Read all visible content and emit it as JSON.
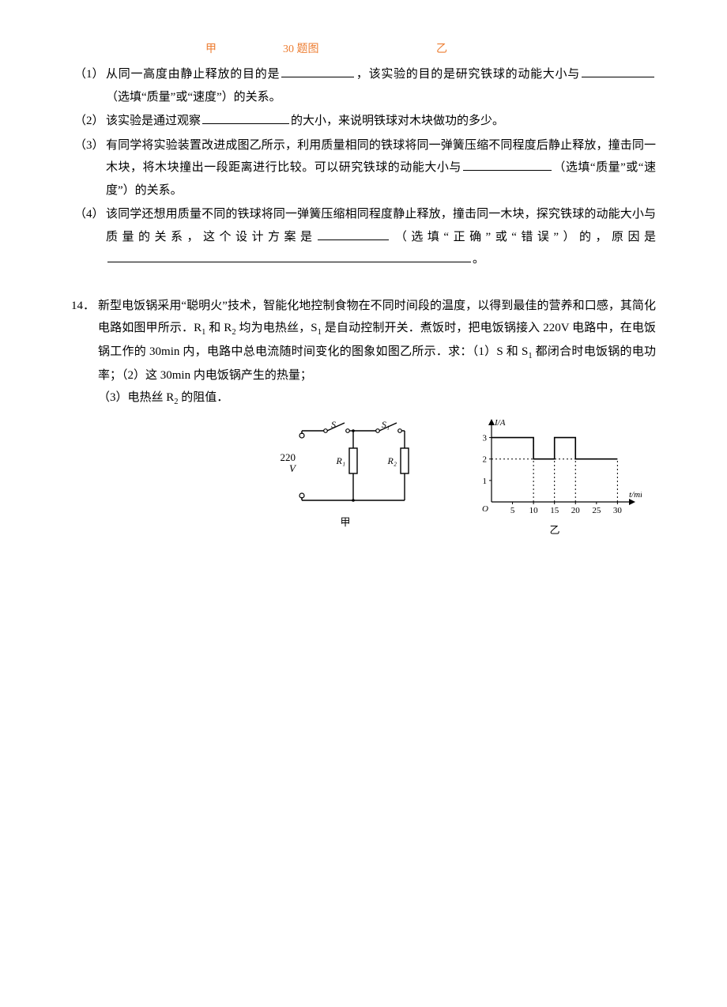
{
  "header": {
    "jia": "甲",
    "title": "30 题图",
    "yi": "乙",
    "color": "#ed7d31"
  },
  "q13": {
    "items": [
      {
        "num": "（1）",
        "pre": "从同一高度由静止释放的目的是",
        "blank1_w": 92,
        "mid": "，该实验的目的是研究铁球的动能大小与",
        "blank2_w": 92,
        "post": "（选填“质量”或“速度”）的关系。"
      },
      {
        "num": "（2）",
        "pre": "该实验是通过观察",
        "blank1_w": 110,
        "post": "的大小，来说明铁球对木块做功的多少。"
      },
      {
        "num": "（3）",
        "lines": [
          "有同学将实验装置改进成图乙所示，利用质量相同的铁球将同一弹簧压缩不同程度后静止释放，撞击同一木块，将木块撞出一段距离进行比较。可以研究铁球的动能大小与"
        ],
        "blank1_w": 112,
        "post": "（选填“质量”或“速度”）的关系。"
      },
      {
        "num": "（4）",
        "pre": "该同学还想用质量不同的铁球将同一弹簧压缩相同程度静止释放，撞击同一木块，探究铁球的动能大小与质量的关系，这个设计方案是",
        "blank1_w": 90,
        "mid": "（选填“正确”或“错误”）的，原因是",
        "blank2_w": 460,
        "post": "。"
      }
    ]
  },
  "q14": {
    "num": "14．",
    "text_pre": "新型电饭锅采用“聪明火”技术，智能化地控制食物在不同时间段的温度，以得到最佳的营养和口感，其简化电路如图甲所示．R",
    "sub1": "1",
    "text_mid1": " 和 R",
    "sub2": "2",
    "text_mid2": " 均为电热丝，S",
    "sub3": "1",
    "text_mid3": " 是自动控制开关．煮饭时，把电饭锅接入 220V 电路中，在电饭锅工作的 30min 内，电路中总电流随时间变化的图象如图乙所示．求：（1）S 和 S",
    "sub4": "1",
    "text_mid4": " 都闭合时电饭锅的电功率；（2）这 30min 内电饭锅产生的热量；",
    "line3": "（3）电热丝 R",
    "sub5": "2",
    "text_end": " 的阻值．",
    "circuit": {
      "label": "甲",
      "voltage": "220",
      "v_unit": "V",
      "s_label": "S",
      "s1_label": "S₁",
      "r1_label": "R₁",
      "r2_label": "R₂",
      "stroke": "#000000",
      "font_size": 12
    },
    "graph": {
      "label": "乙",
      "y_label": "I/A",
      "x_label": "t/min",
      "x_ticks": [
        "5",
        "10",
        "15",
        "20",
        "25",
        "30"
      ],
      "y_ticks": [
        "1",
        "2",
        "3"
      ],
      "x_max": 30,
      "y_max": 3.5,
      "ylim": [
        0,
        3.5
      ],
      "xlim": [
        0,
        32
      ],
      "origin": "O",
      "data_points": [
        {
          "t": 0,
          "I": 3
        },
        {
          "t": 10,
          "I": 3
        },
        {
          "t": 10,
          "I": 2
        },
        {
          "t": 15,
          "I": 2
        },
        {
          "t": 15,
          "I": 3
        },
        {
          "t": 20,
          "I": 3
        },
        {
          "t": 20,
          "I": 2
        },
        {
          "t": 30,
          "I": 2
        }
      ],
      "dashed_refs": [
        2,
        3
      ],
      "dashed_verticals": [
        10,
        15,
        20
      ],
      "axis_color": "#000000",
      "line_color": "#000000",
      "dash_color": "#000000",
      "font_size": 11
    }
  }
}
